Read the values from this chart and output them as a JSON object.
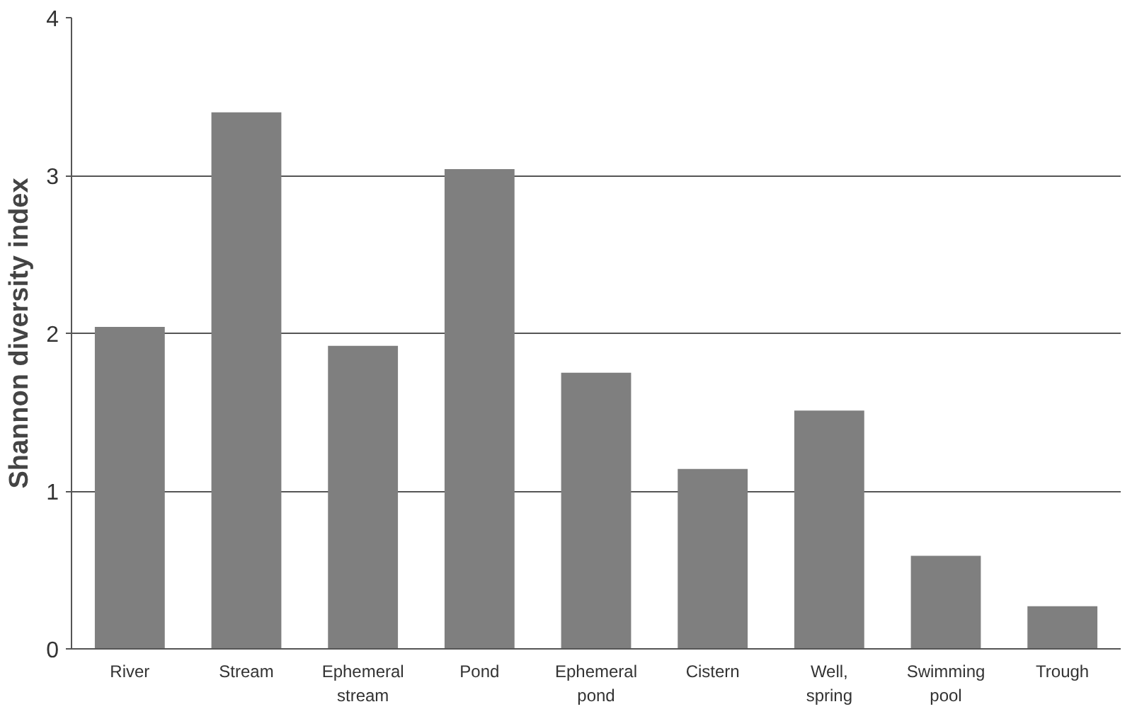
{
  "chart_data": {
    "type": "bar",
    "ylabel": "Shannon diversity index",
    "categories": [
      "River",
      "Stream",
      "Ephemeral stream",
      "Pond",
      "Ephemeral pond",
      "Cistern",
      "Well, spring",
      "Swimming pool",
      "Trough"
    ],
    "values": [
      2.04,
      3.4,
      1.92,
      3.04,
      1.75,
      1.14,
      1.51,
      0.59,
      0.27
    ],
    "color": "#7f7f7f",
    "ylim": [
      0,
      4
    ],
    "yticks": [
      0,
      1,
      2,
      3,
      4
    ],
    "grid": "y"
  }
}
